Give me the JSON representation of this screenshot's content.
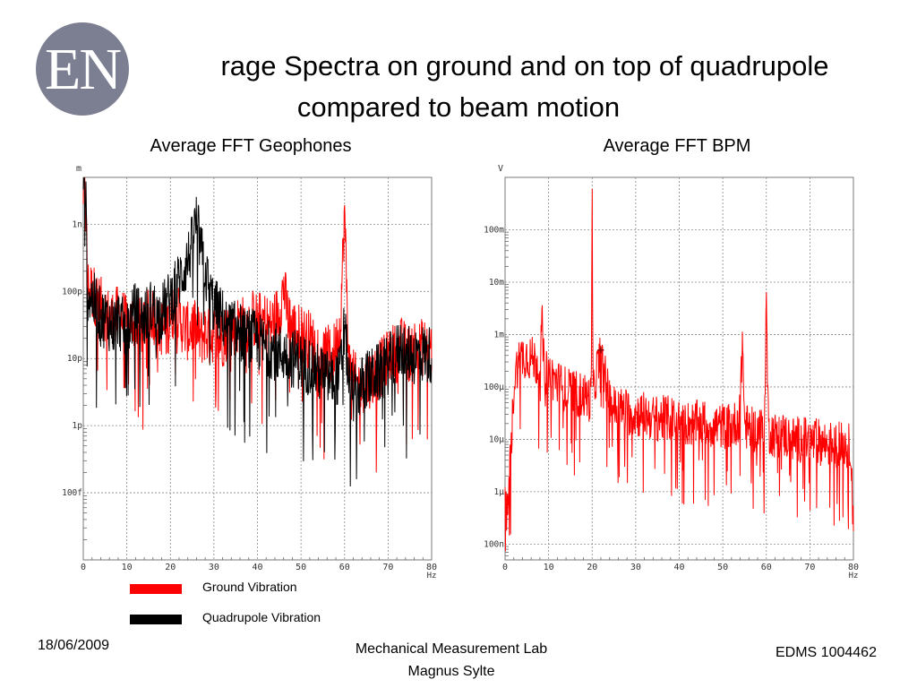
{
  "slide": {
    "logo_text": "EN",
    "title_line1": "rage Spectra on ground and on top of quadrupole",
    "title_line2": "compared to beam motion",
    "date": "18/06/2009",
    "footer_center_line1": "Mechanical Measurement Lab",
    "footer_center_line2": "Magnus Sylte",
    "footer_right": "EDMS 1004462"
  },
  "legend": {
    "items": [
      {
        "label": "Ground Vibration",
        "color": "#ff0000"
      },
      {
        "label": "Quadrupole Vibration",
        "color": "#000000"
      }
    ]
  },
  "chart_data": [
    {
      "type": "line",
      "title": "Average FFT Geophones",
      "unit_label": "m",
      "xlabel": "Hz",
      "x_ticks": [
        "0",
        "10",
        "20",
        "30",
        "40",
        "50",
        "60",
        "70",
        "80"
      ],
      "y_ticks": [
        "1n",
        "100p",
        "10p",
        "1p",
        "100f"
      ],
      "y_tick_values": [
        1e-09,
        1e-10,
        1e-11,
        1e-12,
        1e-13
      ],
      "xlim": [
        0,
        80
      ],
      "ylim": [
        1e-14,
        5e-09
      ],
      "yscale": "log",
      "grid": true,
      "series": [
        {
          "name": "Ground Vibration",
          "color": "#ff0000",
          "x": [
            0.5,
            1,
            2,
            3,
            4,
            5,
            6,
            7,
            8,
            9,
            10,
            11,
            12,
            13,
            14,
            15,
            16,
            17,
            18,
            19,
            20,
            21,
            22,
            23,
            24,
            25,
            26,
            27,
            28,
            29,
            30,
            31,
            32,
            33,
            34,
            35,
            36,
            37,
            38,
            39,
            40,
            41,
            42,
            43,
            44,
            45,
            46,
            47,
            48,
            49,
            50,
            51,
            52,
            53,
            54,
            55,
            56,
            57,
            58,
            59,
            60,
            61,
            62,
            63,
            64,
            65,
            66,
            67,
            68,
            69,
            70,
            71,
            72,
            73,
            74,
            75,
            76,
            77,
            78,
            79,
            80
          ],
          "values": [
            3e-09,
            1.2e-10,
            1e-10,
            8e-11,
            6e-11,
            5e-11,
            4e-11,
            4e-11,
            4.5e-11,
            4e-11,
            3e-11,
            3.5e-11,
            4e-11,
            3e-11,
            3.5e-11,
            4e-11,
            5e-11,
            3e-11,
            3e-11,
            2.5e-11,
            4e-11,
            6e-11,
            4e-11,
            3e-11,
            2.5e-11,
            3e-11,
            2.5e-11,
            2e-11,
            2.5e-11,
            2e-11,
            2.5e-11,
            2e-11,
            2e-11,
            2.5e-11,
            3e-11,
            3e-11,
            3.5e-11,
            3e-11,
            3.5e-11,
            4e-11,
            3.5e-11,
            4e-11,
            3.5e-11,
            3e-11,
            4e-11,
            5e-11,
            1.2e-10,
            4e-11,
            3e-11,
            2.5e-11,
            2.5e-11,
            2e-11,
            2e-11,
            1.5e-11,
            1.5e-11,
            1.2e-11,
            1.2e-11,
            1e-11,
            1.5e-11,
            3e-11,
            1.5e-09,
            8e-12,
            5e-12,
            4e-12,
            4e-12,
            5e-12,
            5e-12,
            6e-12,
            7e-12,
            8e-12,
            1e-11,
            1.2e-11,
            1.2e-11,
            1.5e-11,
            1.3e-11,
            1.2e-11,
            1.5e-11,
            1.3e-11,
            1.5e-11,
            1.4e-11,
            1.5e-11
          ]
        },
        {
          "name": "Quadrupole Vibration",
          "color": "#000000",
          "x": [
            0.5,
            1,
            2,
            3,
            4,
            5,
            6,
            7,
            8,
            9,
            10,
            11,
            12,
            13,
            14,
            15,
            16,
            17,
            18,
            19,
            20,
            21,
            22,
            23,
            24,
            25,
            26,
            27,
            28,
            29,
            30,
            31,
            32,
            33,
            34,
            35,
            36,
            37,
            38,
            39,
            40,
            41,
            42,
            43,
            44,
            45,
            46,
            47,
            48,
            49,
            50,
            51,
            52,
            53,
            54,
            55,
            56,
            57,
            58,
            59,
            60,
            61,
            62,
            63,
            64,
            65,
            66,
            67,
            68,
            69,
            70,
            71,
            72,
            73,
            74,
            75,
            76,
            77,
            78,
            79,
            80
          ],
          "values": [
            4e-09,
            1e-10,
            8e-11,
            6e-11,
            4e-11,
            4e-11,
            3.5e-11,
            3e-11,
            4e-11,
            3e-11,
            2.5e-11,
            4e-11,
            5e-11,
            4e-11,
            4e-11,
            5e-11,
            6e-11,
            4e-11,
            5e-11,
            6e-11,
            8e-11,
            1e-10,
            1.5e-10,
            2e-10,
            3e-10,
            5e-10,
            1.2e-09,
            4e-10,
            2e-10,
            1e-10,
            6e-11,
            5e-11,
            4e-11,
            3e-11,
            3e-11,
            2.5e-11,
            2.5e-11,
            2e-11,
            2e-11,
            2e-11,
            1.8e-11,
            1.6e-11,
            1.5e-11,
            1.4e-11,
            1.3e-11,
            1.2e-11,
            1.2e-11,
            1.1e-11,
            1e-11,
            1e-11,
            9e-12,
            8e-12,
            8e-12,
            7e-12,
            6e-12,
            6e-12,
            5e-12,
            5e-12,
            5e-12,
            6e-12,
            3e-11,
            5e-12,
            3e-12,
            3e-12,
            4e-12,
            5e-12,
            5e-12,
            6e-12,
            6e-12,
            7e-12,
            8e-12,
            1e-11,
            1.2e-11,
            1.5e-11,
            1.3e-11,
            1.2e-11,
            1.1e-11,
            1.2e-11,
            1.2e-11,
            1.1e-11,
            1.2e-11
          ]
        }
      ]
    },
    {
      "type": "line",
      "title": "Average FFT BPM",
      "unit_label": "V",
      "xlabel": "Hz",
      "x_ticks": [
        "0",
        "10",
        "20",
        "30",
        "40",
        "50",
        "60",
        "70",
        "80"
      ],
      "y_ticks": [
        "100m",
        "10m",
        "1m",
        "100μ",
        "10μ",
        "1μ",
        "100n"
      ],
      "y_tick_values": [
        0.1,
        0.01,
        0.001,
        0.0001,
        1e-05,
        1e-06,
        1e-07
      ],
      "xlim": [
        0,
        80
      ],
      "ylim": [
        5e-08,
        1
      ],
      "yscale": "log",
      "grid": true,
      "marker": {
        "x": 22,
        "y": 0.0005,
        "symbol": "+"
      },
      "series": [
        {
          "color": "#ff0000",
          "x": [
            0,
            0.5,
            1,
            1.5,
            2,
            2.5,
            3,
            4,
            5,
            6,
            7,
            8,
            8.5,
            9,
            10,
            11,
            12,
            13,
            14,
            15,
            16,
            17,
            18,
            19,
            19.8,
            20,
            20.2,
            21,
            22,
            23,
            24,
            25,
            26,
            27,
            28,
            29,
            30,
            32,
            34,
            36,
            38,
            40,
            42,
            44,
            46,
            48,
            50,
            52,
            53,
            54,
            54.5,
            55,
            56,
            58,
            59.5,
            60,
            60.5,
            62,
            64,
            66,
            68,
            70,
            72,
            74,
            76,
            78,
            79.5,
            80
          ],
          "values": [
            5e-07,
            3e-07,
            2e-06,
            1e-05,
            0.0001,
            0.0002,
            0.0003,
            0.0004,
            0.0004,
            0.00035,
            0.0003,
            0.00025,
            0.0015,
            0.0002,
            0.00018,
            0.00015,
            0.00012,
            0.0001,
            9e-05,
            8e-05,
            8e-05,
            7e-05,
            7e-05,
            6e-05,
            6e-05,
            0.5,
            6e-05,
            0.0002,
            0.0004,
            0.00015,
            6e-05,
            4e-05,
            4e-05,
            3.5e-05,
            3.5e-05,
            3e-05,
            3e-05,
            3e-05,
            2.5e-05,
            2.5e-05,
            2.5e-05,
            2.2e-05,
            2e-05,
            2e-05,
            2e-05,
            1.8e-05,
            1.8e-05,
            1.8e-05,
            2e-05,
            3e-05,
            0.001,
            2e-05,
            1.5e-05,
            1.5e-05,
            1.5e-05,
            0.004,
            1.5e-05,
            1.2e-05,
            1.2e-05,
            1e-05,
            1e-05,
            9e-06,
            9e-06,
            8e-06,
            8e-06,
            8e-06,
            7e-06,
            1e-07
          ]
        }
      ]
    }
  ]
}
